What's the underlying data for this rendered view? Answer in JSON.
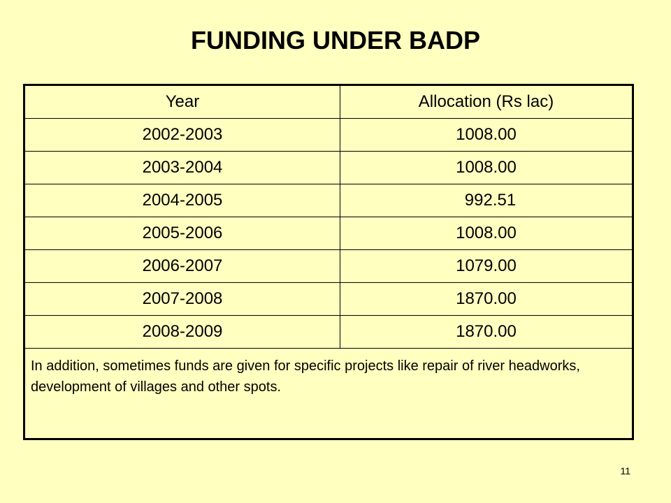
{
  "title": "FUNDING UNDER BADP",
  "table": {
    "headers": [
      "Year",
      "Allocation  (Rs lac)"
    ],
    "rows": [
      {
        "year": "2002-2003",
        "allocation": "1008.00"
      },
      {
        "year": "2003-2004",
        "allocation": "1008.00"
      },
      {
        "year": "2004-2005",
        "allocation": "992.51"
      },
      {
        "year": "2005-2006",
        "allocation": "1008.00"
      },
      {
        "year": "2006-2007",
        "allocation": "1079.00"
      },
      {
        "year": "2007-2008",
        "allocation": "1870.00"
      },
      {
        "year": "2008-2009",
        "allocation": "1870.00"
      }
    ],
    "note": "In addition, sometimes funds are given for specific projects like repair of river headworks, development of villages and other spots."
  },
  "slide_number": "11"
}
